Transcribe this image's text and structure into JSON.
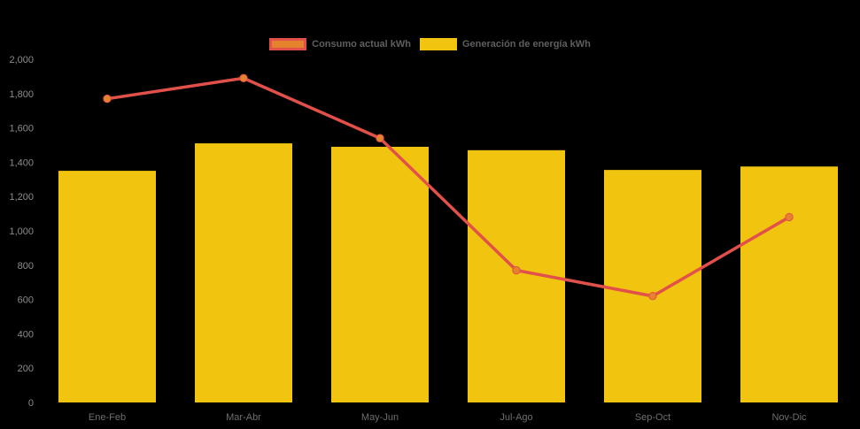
{
  "chart_data": {
    "type": "bar",
    "title": "",
    "xlabel": "",
    "ylabel": "",
    "categories": [
      "Ene-Feb",
      "Mar-Abr",
      "May-Jun",
      "Jul-Ago",
      "Sep-Oct",
      "Nov-Dic"
    ],
    "series": [
      {
        "name": "Consumo actual kWh",
        "type": "line",
        "color": "#e2504a",
        "marker_color": "#e5822d",
        "values": [
          1770,
          1890,
          1540,
          770,
          620,
          1080
        ]
      },
      {
        "name": "Generación de energía kWh",
        "type": "bar",
        "color": "#f1c40f",
        "values": [
          1350,
          1510,
          1490,
          1470,
          1355,
          1375
        ]
      }
    ],
    "ylim": [
      0,
      2000
    ],
    "ytick_step": 200,
    "yticklabels": [
      "0",
      "200",
      "400",
      "600",
      "800",
      "1,000",
      "1,200",
      "1,400",
      "1,600",
      "1,800",
      "2,000"
    ],
    "grid": false,
    "legend_position": "top-center",
    "background_color": "#000000",
    "ytick_color": "#8c8c8c",
    "xtick_color": "#6e6e6e",
    "legend_text_color": "#5f5f5f"
  }
}
